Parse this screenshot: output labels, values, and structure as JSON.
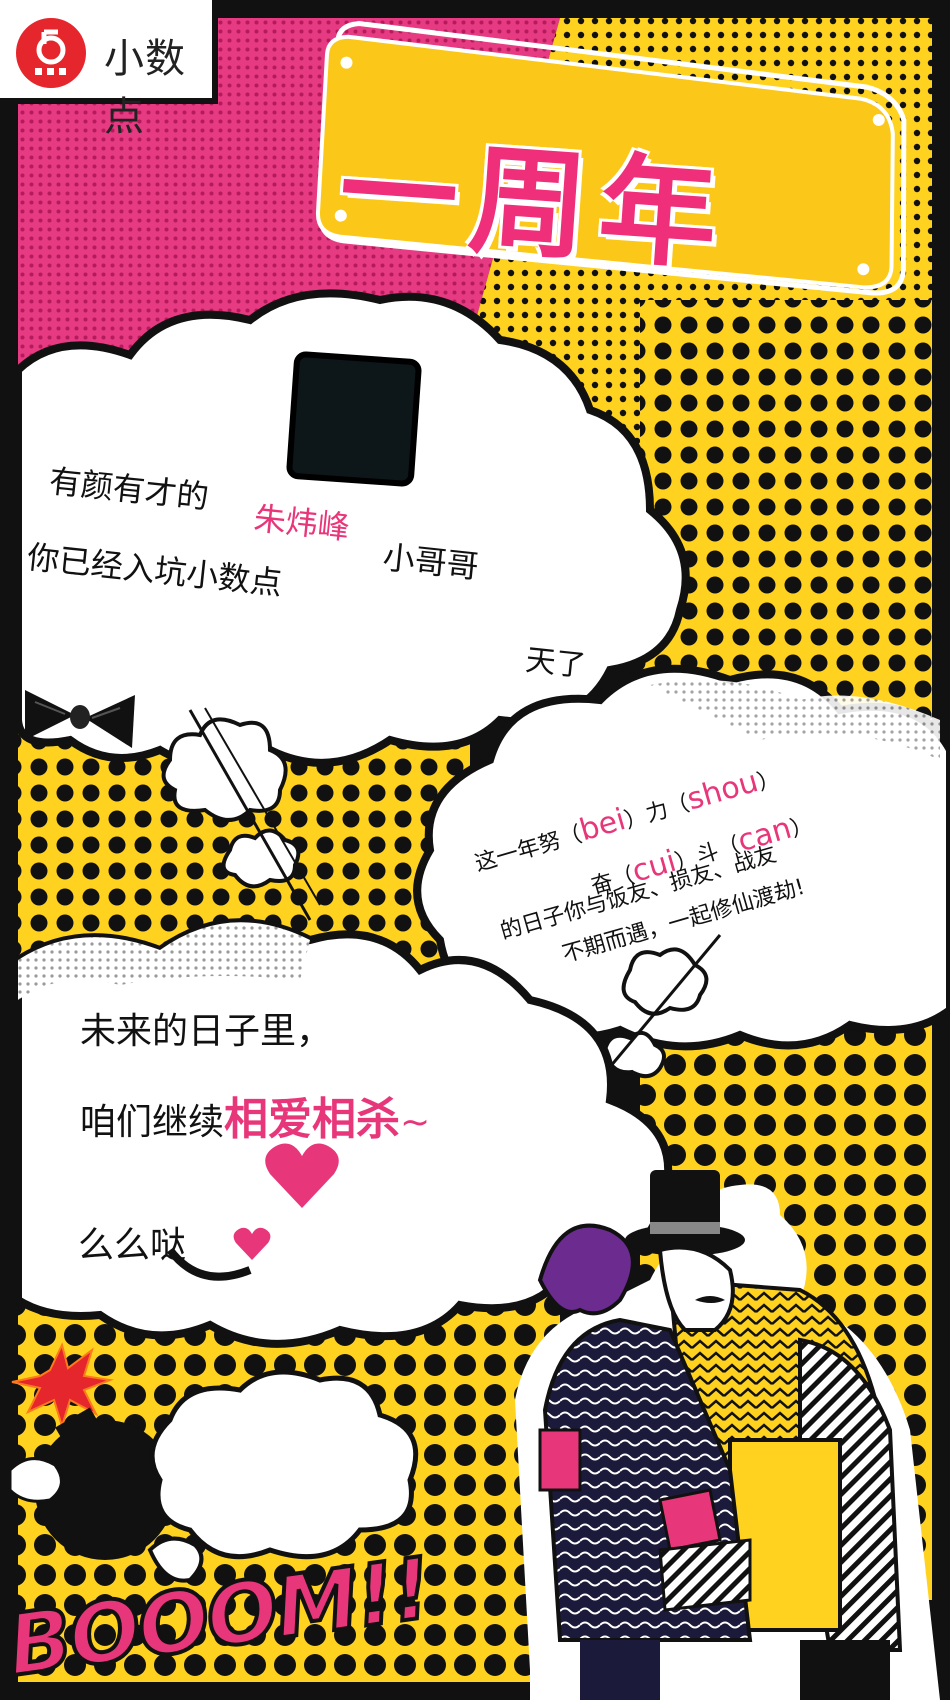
{
  "brand": {
    "name": "小数点",
    "logo_icon": "brand-logo-icon"
  },
  "title": "一周年",
  "cloud_top": {
    "line1_a": "有颜有才的",
    "line1_name": "朱炜峰",
    "line1_b": "小哥哥",
    "line2": "你已经入坑小数点",
    "line3": "天了"
  },
  "cloud_mid": {
    "l1_a": "这一年努（",
    "l1_p1": "bei",
    "l1_b": "）力（",
    "l1_p2": "shou",
    "l1_c": "）",
    "l2_a": "奋（",
    "l2_p1": "cui",
    "l2_b": "）斗（",
    "l2_p2": "can",
    "l2_c": "）",
    "l3": "的日子你与饭友、损友、战友",
    "l4": "不期而遇，一起修仙渡劫!"
  },
  "cloud_bottom": {
    "line1": "未来的日子里，",
    "line2_a": "咱们继续",
    "line2_big": "相爱相杀",
    "line2_b": "~",
    "line3": "么么哒"
  },
  "boom": "BOOOM!!",
  "colors": {
    "pink": "#e8367a",
    "yellow": "#ffd21f",
    "black": "#111111",
    "white": "#ffffff"
  }
}
